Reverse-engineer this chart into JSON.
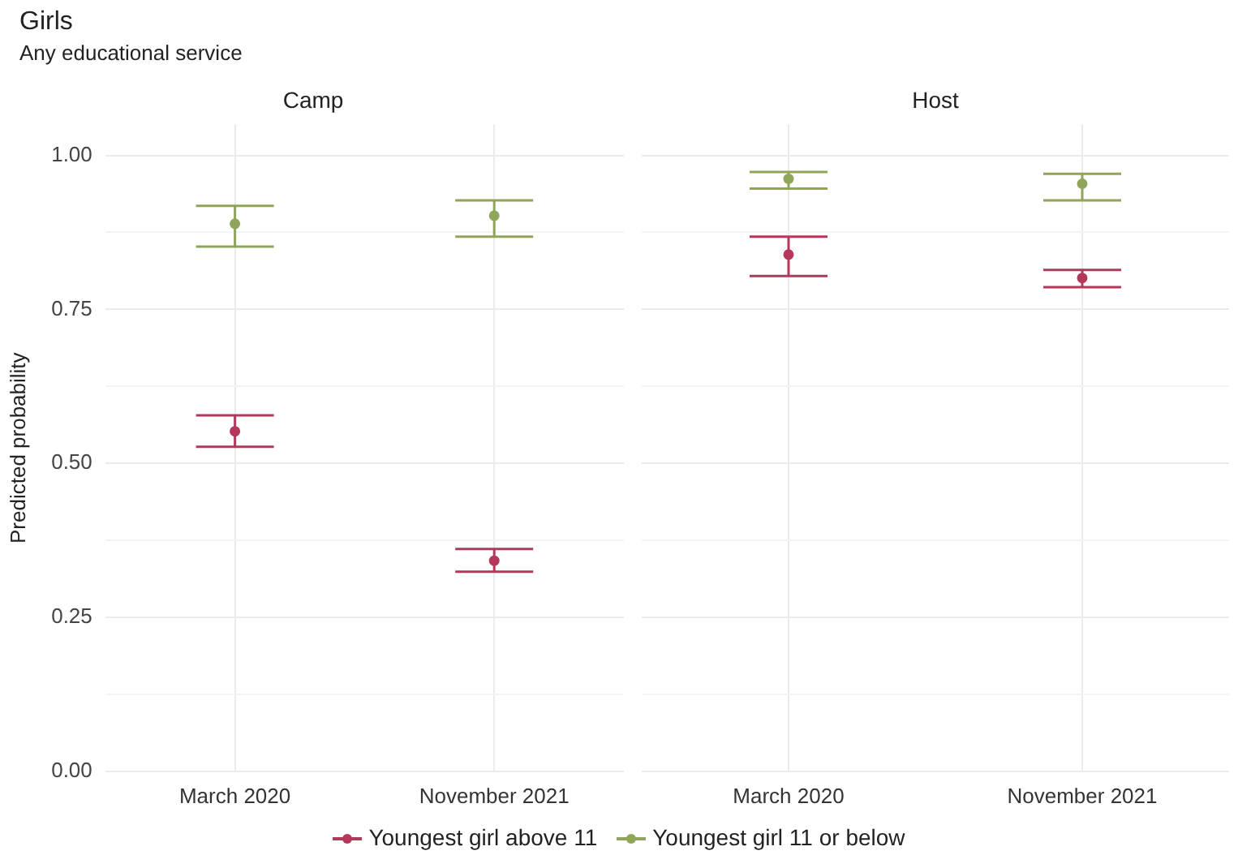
{
  "chart_data": [
    {
      "type": "scatter",
      "title": "Camp",
      "annotations": [
        "Girls",
        "Any educational service"
      ],
      "ylabel": "Predicted probability",
      "categories": [
        "March 2020",
        "November 2021"
      ],
      "ylim": [
        0,
        1.05
      ],
      "yticks": [
        {
          "value": 0,
          "label": "0.00"
        },
        {
          "value": 0.125,
          "label": null
        },
        {
          "value": 0.25,
          "label": "0.25"
        },
        {
          "value": 0.375,
          "label": null
        },
        {
          "value": 0.5,
          "label": "0.50"
        },
        {
          "value": 0.625,
          "label": null
        },
        {
          "value": 0.75,
          "label": "0.75"
        },
        {
          "value": 0.875,
          "label": null
        },
        {
          "value": 1,
          "label": "1.00"
        }
      ],
      "grid": true,
      "marker": "circle",
      "legend": "bottom",
      "series": [
        {
          "name": "Youngest girl above 11",
          "color": "#b5375a",
          "values": [
            0.552,
            0.342
          ],
          "errors": [
            [
              0.527,
              0.578
            ],
            [
              0.324,
              0.361
            ]
          ]
        },
        {
          "name": "Youngest girl 11 or below",
          "color": "#8fa65a",
          "values": [
            0.889,
            0.902
          ],
          "errors": [
            [
              0.852,
              0.918
            ],
            [
              0.868,
              0.927
            ]
          ]
        }
      ]
    },
    {
      "type": "scatter",
      "title": "Host",
      "categories": [
        "March 2020",
        "November 2021"
      ],
      "ylim": [
        0,
        1.05
      ],
      "yticks": [
        {
          "value": 0,
          "label": null
        },
        {
          "value": 0.125,
          "label": null
        },
        {
          "value": 0.25,
          "label": null
        },
        {
          "value": 0.375,
          "label": null
        },
        {
          "value": 0.5,
          "label": null
        },
        {
          "value": 0.625,
          "label": null
        },
        {
          "value": 0.75,
          "label": null
        },
        {
          "value": 0.875,
          "label": null
        },
        {
          "value": 1,
          "label": null
        }
      ],
      "grid": true,
      "marker": "circle",
      "tick_labels": "x",
      "series": [
        {
          "color": "#b5375a",
          "values": [
            0.839,
            0.801
          ],
          "errors": [
            [
              0.804,
              0.868
            ],
            [
              0.786,
              0.814
            ]
          ]
        },
        {
          "color": "#8fa65a",
          "values": [
            0.962,
            0.954
          ],
          "errors": [
            [
              0.946,
              0.973
            ],
            [
              0.927,
              0.97
            ]
          ]
        }
      ]
    }
  ]
}
